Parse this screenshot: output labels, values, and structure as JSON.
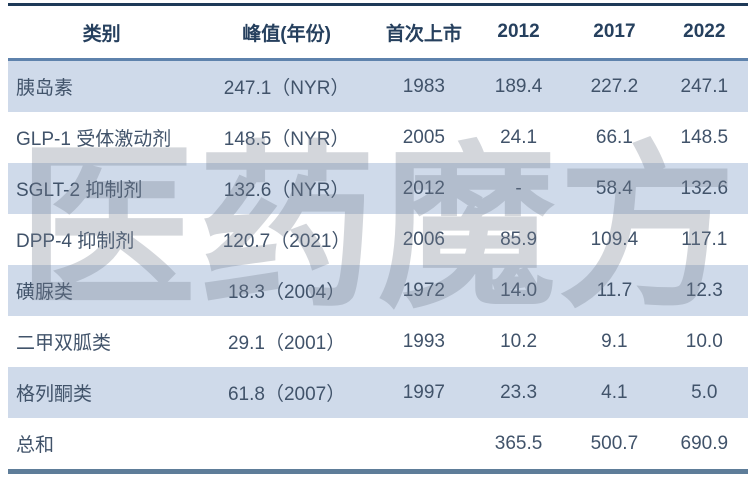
{
  "chart_data": {
    "type": "table",
    "title": "",
    "columns": [
      "类别",
      "峰值(年份)",
      "首次上市",
      "2012",
      "2017",
      "2022"
    ],
    "rows": [
      [
        "胰岛素",
        "247.1（NYR）",
        "1983",
        "189.4",
        "227.2",
        "247.1"
      ],
      [
        "GLP-1 受体激动剂",
        "148.5（NYR）",
        "2005",
        "24.1",
        "66.1",
        "148.5"
      ],
      [
        "SGLT-2 抑制剂",
        "132.6（NYR）",
        "2012",
        "-",
        "58.4",
        "132.6"
      ],
      [
        "DPP-4 抑制剂",
        "120.7（2021）",
        "2006",
        "85.9",
        "109.4",
        "117.1"
      ],
      [
        "磺脲类",
        "18.3（2004）",
        "1972",
        "14.0",
        "11.7",
        "12.3"
      ],
      [
        "二甲双胍类",
        "29.1（2001）",
        "1993",
        "10.2",
        "9.1",
        "10.0"
      ],
      [
        "格列酮类",
        "61.8（2007）",
        "1997",
        "23.3",
        "4.1",
        "5.0"
      ],
      [
        "总和",
        "",
        "",
        "365.5",
        "500.7",
        "690.9"
      ]
    ],
    "layout_hints": {
      "striped_rows": [
        0,
        2,
        4,
        6
      ],
      "stripe_color": "#cfdaea",
      "header_text_color": "#26405e",
      "body_text_color": "#41536a",
      "top_rule_color": "#1e3a58",
      "header_rule_color": "#5e82ac",
      "bottom_rule_color": "#5e7d99"
    }
  },
  "watermark": {
    "text": "医药魔方"
  }
}
